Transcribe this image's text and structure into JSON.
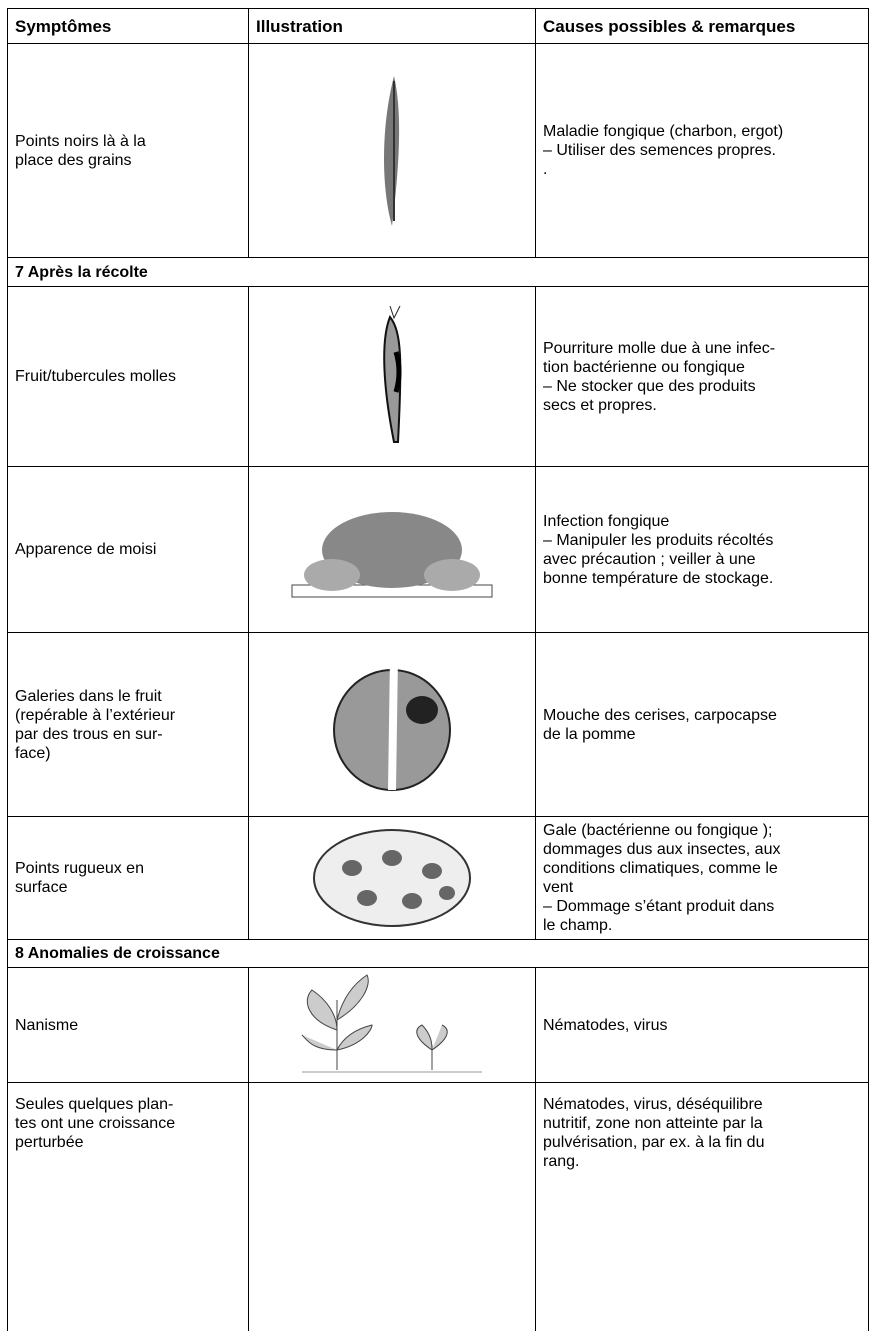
{
  "table": {
    "header": [
      "Symptômes",
      "Illustration",
      "Causes possibles & remarques"
    ],
    "rows": [
      {
        "symptom": [
          "Points noirs là à la",
          "place des grains"
        ],
        "causes": [
          "Maladie fongique (charbon, ergot)",
          "– Utiliser des semences propres.",
          "."
        ]
      },
      {
        "section": "7 Après la récolte"
      },
      {
        "symptom": [
          "Fruit/tubercules molles"
        ],
        "causes": [
          "Pourriture molle due à une infec-",
          "tion bactérienne ou fongique",
          "– Ne stocker que des produits",
          "secs et propres."
        ]
      },
      {
        "symptom": [
          "Apparence de moisi"
        ],
        "causes": [
          "Infection fongique",
          "– Manipuler les produits récoltés",
          "avec précaution ; veiller à une",
          "bonne température de stockage."
        ]
      },
      {
        "symptom": [
          "Galeries dans le fruit",
          "(repérable à l’extérieur",
          "par des trous en sur-",
          "face)"
        ],
        "causes": [
          "Mouche des cerises, carpocapse",
          "de la pomme"
        ]
      },
      {
        "symptom": [
          "Points rugueux en",
          "surface"
        ],
        "causes": [
          "Gale (bactérienne ou fongique );",
          "dommages dus aux insectes, aux",
          "conditions climatiques, comme le",
          "vent",
          "– Dommage s’étant produit dans",
          "le champ."
        ]
      },
      {
        "section": "8 Anomalies de croissance"
      },
      {
        "symptom": [
          "Nanisme"
        ],
        "causes": [
          "Nématodes, virus"
        ]
      },
      {
        "symptom": [
          "Seules quelques plan-",
          "tes ont une croissance",
          "perturbée"
        ],
        "causes": [
          "Nématodes, virus, déséquilibre",
          "nutritif, zone non atteinte par la",
          "pulvérisation, par ex. à la fin du",
          "rang."
        ]
      }
    ]
  }
}
